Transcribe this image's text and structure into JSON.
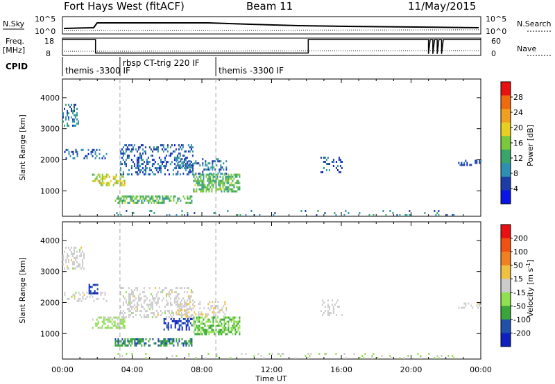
{
  "header": {
    "radar": "Fort Hays West (fitACF)",
    "beam": "Beam 11",
    "date": "11/May/2015"
  },
  "status_panels": {
    "nsky_label": "N.Sky",
    "nsky_ticks": [
      "10^5",
      "10^0"
    ],
    "nsearch_label": "N.Search",
    "nsearch_ticks": [
      "10^5",
      "10^0"
    ],
    "freq_label": "Freq.",
    "freq_unit": "[MHz]",
    "freq_ticks": [
      18,
      8
    ],
    "nave_label": "Nave",
    "nave_ticks": [
      60,
      0
    ],
    "cpid_label": "CPID",
    "cpid_segments": [
      {
        "label": "themis -3300 IF",
        "start_hr": 0.0,
        "end_hr": 3.3
      },
      {
        "label": "rbsp CT-trig 220 IF",
        "start_hr": 3.3,
        "end_hr": 8.8
      },
      {
        "label": "themis -3300 IF",
        "start_hr": 8.8,
        "end_hr": 24.0
      }
    ],
    "freq_trace": [
      [
        0,
        18
      ],
      [
        1.9,
        18
      ],
      [
        1.9,
        9.5
      ],
      [
        14.1,
        9.5
      ],
      [
        14.1,
        18
      ],
      [
        21.0,
        18
      ],
      [
        21.0,
        9
      ],
      [
        21.1,
        18
      ],
      [
        21.25,
        18
      ],
      [
        21.25,
        9
      ],
      [
        21.35,
        18
      ],
      [
        21.5,
        18
      ],
      [
        21.5,
        9
      ],
      [
        21.6,
        18
      ],
      [
        21.75,
        18
      ],
      [
        21.75,
        9
      ],
      [
        21.85,
        18
      ],
      [
        24,
        18
      ]
    ]
  },
  "chart_data": [
    {
      "type": "heatmap",
      "name": "power",
      "xlabel": "Time UT",
      "ylabel": "Slant Range [km]",
      "xlim": [
        0,
        24
      ],
      "ylim": [
        180,
        4600
      ],
      "x_ticks": [
        "00:00",
        "04:00",
        "08:00",
        "12:00",
        "16:00",
        "20:00",
        "00:00"
      ],
      "x_tick_values": [
        0,
        4,
        8,
        12,
        16,
        20,
        24
      ],
      "y_ticks": [
        1000,
        2000,
        3000,
        4000
      ],
      "colorbar": {
        "label": "Power [dB]",
        "range": [
          0,
          32
        ],
        "ticks": [
          4,
          8,
          12,
          16,
          20,
          24,
          28
        ],
        "colors": [
          "#0a14e6",
          "#1e3ca8",
          "#2f8fb0",
          "#3aa56a",
          "#7cc83c",
          "#e8d020",
          "#f0a020",
          "#f06a10",
          "#e81010"
        ]
      },
      "cpid_change_lines": [
        3.3,
        8.8
      ],
      "regions": [
        {
          "t": [
            0.0,
            0.9
          ],
          "r": [
            3100,
            3800
          ],
          "v": 8,
          "density": 0.35
        },
        {
          "t": [
            0.1,
            2.5
          ],
          "r": [
            2050,
            2350
          ],
          "v": 7,
          "density": 0.3
        },
        {
          "t": [
            1.7,
            3.6
          ],
          "r": [
            1150,
            1550
          ],
          "v": 18,
          "density": 0.55
        },
        {
          "t": [
            3.3,
            7.5
          ],
          "r": [
            1500,
            2500
          ],
          "v": 7,
          "density": 0.3
        },
        {
          "t": [
            3.0,
            7.4
          ],
          "r": [
            600,
            850
          ],
          "v": 14,
          "density": 0.55
        },
        {
          "t": [
            6.5,
            9.4
          ],
          "r": [
            1550,
            2050
          ],
          "v": 8,
          "density": 0.3
        },
        {
          "t": [
            7.5,
            10.2
          ],
          "r": [
            1000,
            1550
          ],
          "v": 14,
          "density": 0.55
        },
        {
          "t": [
            14.8,
            16.0
          ],
          "r": [
            1600,
            2100
          ],
          "v": 6,
          "density": 0.25
        },
        {
          "t": [
            22.7,
            24.0
          ],
          "r": [
            1850,
            2000
          ],
          "v": 6,
          "density": 0.3
        },
        {
          "t": [
            3.0,
            22.5
          ],
          "r": [
            200,
            380
          ],
          "v": 9,
          "density": 0.1
        }
      ]
    },
    {
      "type": "heatmap",
      "name": "velocity",
      "xlabel": "Time UT",
      "ylabel": "Slant Range [km]",
      "xlim": [
        0,
        24
      ],
      "ylim": [
        180,
        4600
      ],
      "x_ticks": [
        "00:00",
        "04:00",
        "08:00",
        "12:00",
        "16:00",
        "20:00",
        "00:00"
      ],
      "x_tick_values": [
        0,
        4,
        8,
        12,
        16,
        20,
        24
      ],
      "y_ticks": [
        1000,
        2000,
        3000,
        4000
      ],
      "colorbar": {
        "label": "Velocity [m s",
        "label_superscript": "-1",
        "label_close": "]",
        "range": [
          -250,
          250
        ],
        "ticks": [
          "200",
          "100",
          "50",
          "15",
          "-15",
          "-50",
          "-100",
          "-200"
        ],
        "colors": [
          "#e81010",
          "#f05010",
          "#f08020",
          "#f0c040",
          "#cccccc",
          "#90e050",
          "#3aa53a",
          "#2050a8",
          "#1020c0"
        ]
      },
      "cpid_change_lines": [
        3.3,
        8.8
      ],
      "regions": [
        {
          "t": [
            0.0,
            1.2
          ],
          "r": [
            3100,
            3800
          ],
          "v": 0,
          "density": 0.35
        },
        {
          "t": [
            0.1,
            2.5
          ],
          "r": [
            2050,
            2350
          ],
          "v": 0,
          "density": 0.3
        },
        {
          "t": [
            1.5,
            2.0
          ],
          "r": [
            2300,
            2600
          ],
          "v": -200,
          "density": 0.6
        },
        {
          "t": [
            1.7,
            3.6
          ],
          "r": [
            1150,
            1550
          ],
          "v": -40,
          "density": 0.55
        },
        {
          "t": [
            3.3,
            7.5
          ],
          "r": [
            1500,
            2500
          ],
          "v": 0,
          "density": 0.3
        },
        {
          "t": [
            3.0,
            7.4
          ],
          "r": [
            600,
            850
          ],
          "v": -130,
          "density": 0.6
        },
        {
          "t": [
            5.8,
            7.4
          ],
          "r": [
            1100,
            1500
          ],
          "v": -200,
          "density": 0.45
        },
        {
          "t": [
            6.5,
            9.4
          ],
          "r": [
            1550,
            2050
          ],
          "v": 20,
          "density": 0.3
        },
        {
          "t": [
            7.5,
            10.2
          ],
          "r": [
            1000,
            1550
          ],
          "v": -80,
          "density": 0.55
        },
        {
          "t": [
            14.8,
            16.0
          ],
          "r": [
            1600,
            2100
          ],
          "v": 0,
          "density": 0.25
        },
        {
          "t": [
            22.7,
            24.0
          ],
          "r": [
            1850,
            2000
          ],
          "v": 0,
          "density": 0.3
        },
        {
          "t": [
            3.0,
            22.5
          ],
          "r": [
            200,
            380
          ],
          "v": -30,
          "density": 0.1
        }
      ]
    }
  ]
}
